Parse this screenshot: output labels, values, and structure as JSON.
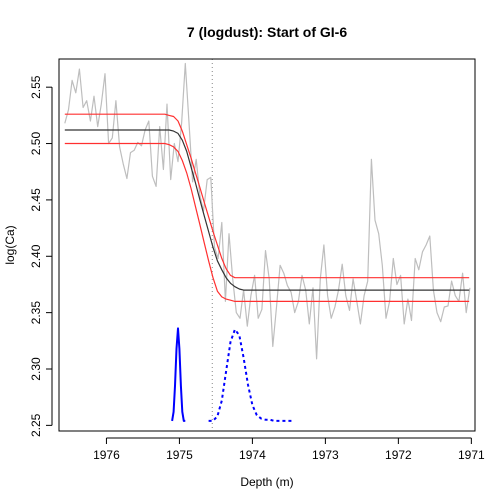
{
  "chart_data": {
    "type": "line",
    "title": "7 (logdust): Start of GI-6",
    "xlabel": "Depth (m)",
    "ylabel": "log(Ca)",
    "xlim": [
      1976.65,
      1970.95
    ],
    "ylim": [
      2.245,
      2.575
    ],
    "x_ticks": [
      1976,
      1975,
      1974,
      1973,
      1972,
      1971
    ],
    "y_ticks": [
      2.25,
      2.3,
      2.35,
      2.4,
      2.45,
      2.5,
      2.55
    ],
    "dotted_vline_at": 1974.55,
    "grid": false,
    "series": [
      {
        "role": "observations",
        "color": "#bebebe",
        "x": [
          1976.57,
          1976.52,
          1976.47,
          1976.42,
          1976.37,
          1976.32,
          1976.27,
          1976.22,
          1976.17,
          1976.12,
          1976.07,
          1976.02,
          1975.97,
          1975.92,
          1975.87,
          1975.82,
          1975.77,
          1975.72,
          1975.67,
          1975.62,
          1975.57,
          1975.52,
          1975.47,
          1975.42,
          1975.37,
          1975.32,
          1975.27,
          1975.22,
          1975.17,
          1975.12,
          1975.07,
          1975.02,
          1974.97,
          1974.92,
          1974.87,
          1974.82,
          1974.77,
          1974.72,
          1974.67,
          1974.62,
          1974.57,
          1974.52,
          1974.47,
          1974.42,
          1974.37,
          1974.32,
          1974.27,
          1974.22,
          1974.17,
          1974.12,
          1974.07,
          1974.02,
          1973.97,
          1973.92,
          1973.87,
          1973.82,
          1973.77,
          1973.72,
          1973.67,
          1973.62,
          1973.57,
          1973.52,
          1973.47,
          1973.42,
          1973.37,
          1973.32,
          1973.27,
          1973.22,
          1973.17,
          1973.12,
          1973.07,
          1973.02,
          1972.97,
          1972.92,
          1972.87,
          1972.82,
          1972.77,
          1972.72,
          1972.67,
          1972.62,
          1972.57,
          1972.52,
          1972.47,
          1972.42,
          1972.37,
          1972.32,
          1972.27,
          1972.22,
          1972.17,
          1972.12,
          1972.07,
          1972.02,
          1971.97,
          1971.92,
          1971.87,
          1971.82,
          1971.77,
          1971.72,
          1971.67,
          1971.62,
          1971.57,
          1971.52,
          1971.47,
          1971.42,
          1971.37,
          1971.32,
          1971.27,
          1971.22,
          1971.17,
          1971.12,
          1971.07,
          1971.02
        ],
        "y": [
          2.518,
          2.53,
          2.556,
          2.545,
          2.566,
          2.532,
          2.538,
          2.52,
          2.542,
          2.515,
          2.535,
          2.562,
          2.5,
          2.505,
          2.538,
          2.497,
          2.482,
          2.469,
          2.492,
          2.494,
          2.501,
          2.498,
          2.512,
          2.52,
          2.471,
          2.462,
          2.515,
          2.477,
          2.535,
          2.468,
          2.5,
          2.484,
          2.518,
          2.571,
          2.52,
          2.466,
          2.486,
          2.454,
          2.44,
          2.468,
          2.47,
          2.408,
          2.398,
          2.43,
          2.36,
          2.42,
          2.38,
          2.35,
          2.345,
          2.37,
          2.338,
          2.365,
          2.383,
          2.345,
          2.353,
          2.405,
          2.38,
          2.32,
          2.355,
          2.392,
          2.385,
          2.374,
          2.368,
          2.35,
          2.36,
          2.383,
          2.37,
          2.34,
          2.372,
          2.309,
          2.38,
          2.41,
          2.365,
          2.345,
          2.355,
          2.37,
          2.393,
          2.365,
          2.352,
          2.38,
          2.36,
          2.34,
          2.365,
          2.378,
          2.486,
          2.432,
          2.42,
          2.392,
          2.345,
          2.36,
          2.398,
          2.375,
          2.383,
          2.34,
          2.362,
          2.343,
          2.398,
          2.388,
          2.404,
          2.41,
          2.418,
          2.37,
          2.35,
          2.342,
          2.355,
          2.356,
          2.378,
          2.365,
          2.36,
          2.385,
          2.35,
          2.372
        ]
      },
      {
        "role": "fit",
        "color": "#333333",
        "x": [
          1976.57,
          1975.2,
          1975.14,
          1975.08,
          1975.02,
          1974.96,
          1974.9,
          1974.84,
          1974.78,
          1974.72,
          1974.66,
          1974.6,
          1974.54,
          1974.48,
          1974.42,
          1974.36,
          1974.3,
          1974.24,
          1974.18,
          1974.12,
          1974.06,
          1974.0,
          1973.94,
          1973.88,
          1971.03
        ],
        "y": [
          2.512,
          2.512,
          2.512,
          2.511,
          2.509,
          2.503,
          2.493,
          2.479,
          2.465,
          2.45,
          2.436,
          2.422,
          2.408,
          2.396,
          2.388,
          2.381,
          2.376,
          2.373,
          2.371,
          2.37,
          2.37,
          2.37,
          2.37,
          2.37,
          2.37
        ]
      },
      {
        "role": "upper-bound",
        "color": "#ff3030",
        "x": [
          1976.57,
          1975.2,
          1975.14,
          1975.08,
          1975.02,
          1974.96,
          1974.9,
          1974.84,
          1974.78,
          1974.72,
          1974.66,
          1974.6,
          1974.54,
          1974.48,
          1974.42,
          1974.36,
          1974.3,
          1974.24,
          1974.18,
          1974.12,
          1974.06,
          1974.0,
          1973.94,
          1973.88,
          1971.03
        ],
        "y": [
          2.526,
          2.526,
          2.525,
          2.524,
          2.52,
          2.511,
          2.499,
          2.487,
          2.474,
          2.461,
          2.448,
          2.435,
          2.422,
          2.41,
          2.398,
          2.389,
          2.383,
          2.381,
          2.381,
          2.381,
          2.381,
          2.381,
          2.381,
          2.381,
          2.381
        ]
      },
      {
        "role": "lower-bound",
        "color": "#ff3030",
        "x": [
          1976.57,
          1975.2,
          1975.14,
          1975.08,
          1975.02,
          1974.96,
          1974.9,
          1974.84,
          1974.78,
          1974.72,
          1974.66,
          1974.6,
          1974.54,
          1974.48,
          1974.42,
          1974.36,
          1974.3,
          1974.24,
          1974.18,
          1974.12,
          1974.06,
          1974.0,
          1973.94,
          1973.88,
          1971.03
        ],
        "y": [
          2.5,
          2.5,
          2.499,
          2.497,
          2.493,
          2.485,
          2.474,
          2.46,
          2.444,
          2.428,
          2.412,
          2.396,
          2.381,
          2.369,
          2.364,
          2.362,
          2.361,
          2.36,
          2.36,
          2.36,
          2.36,
          2.36,
          2.36,
          2.36,
          2.36
        ]
      },
      {
        "role": "density-solid",
        "color": "#0000ff",
        "style": "solid",
        "x": [
          1975.1,
          1975.08,
          1975.06,
          1975.04,
          1975.02,
          1975.0,
          1974.98,
          1974.96,
          1974.94,
          1974.92
        ],
        "y": [
          2.254,
          2.262,
          2.285,
          2.318,
          2.336,
          2.318,
          2.285,
          2.262,
          2.254,
          2.254
        ]
      },
      {
        "role": "density-dotted",
        "color": "#0000ff",
        "style": "dotted",
        "x": [
          1974.6,
          1974.54,
          1974.48,
          1974.42,
          1974.36,
          1974.3,
          1974.24,
          1974.18,
          1974.12,
          1974.06,
          1974.0,
          1973.94,
          1973.88,
          1973.82,
          1973.76,
          1973.7,
          1973.64,
          1973.58,
          1973.52,
          1973.46
        ],
        "y": [
          2.254,
          2.254,
          2.258,
          2.272,
          2.298,
          2.324,
          2.335,
          2.33,
          2.31,
          2.286,
          2.268,
          2.259,
          2.256,
          2.255,
          2.255,
          2.254,
          2.254,
          2.254,
          2.254,
          2.254
        ]
      }
    ]
  }
}
